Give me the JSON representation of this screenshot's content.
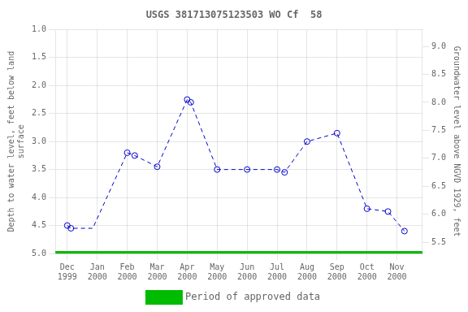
{
  "chart_data": {
    "type": "line",
    "title": "USGS 381713075123503 WO Cf  58",
    "ylabel": "Depth to water level, feet below land\nsurface",
    "y2label": "Groundwater level above NGVD 1929, feet",
    "xlim": [
      -0.4,
      11.85
    ],
    "xticks": [
      {
        "value": 0,
        "label": "Dec\n1999"
      },
      {
        "value": 1,
        "label": "Jan\n2000"
      },
      {
        "value": 2,
        "label": "Feb\n2000"
      },
      {
        "value": 3,
        "label": "Mar\n2000"
      },
      {
        "value": 4,
        "label": "Apr\n2000"
      },
      {
        "value": 5,
        "label": "May\n2000"
      },
      {
        "value": 6,
        "label": "Jun\n2000"
      },
      {
        "value": 7,
        "label": "Jul\n2000"
      },
      {
        "value": 8,
        "label": "Aug\n2000"
      },
      {
        "value": 9,
        "label": "Sep\n2000"
      },
      {
        "value": 10,
        "label": "Oct\n2000"
      },
      {
        "value": 11,
        "label": "Nov\n2000"
      }
    ],
    "ylim": [
      5.0,
      1.0
    ],
    "yticks": [
      {
        "value": 1.0,
        "label": "1.0"
      },
      1.5,
      {
        "value": 2.0,
        "label": "2.0"
      },
      2.5,
      {
        "value": 3.0,
        "label": "3.0"
      },
      3.5,
      {
        "value": 4.0,
        "label": "4.0"
      },
      4.5,
      {
        "value": 5.0,
        "label": "5.0"
      }
    ],
    "y2lim": [
      5.3,
      9.3
    ],
    "y2ticks": [
      5.5,
      {
        "value": 6.0,
        "label": "6.0"
      },
      6.5,
      {
        "value": 7.0,
        "label": "7.0"
      },
      7.5,
      {
        "value": 8.0,
        "label": "8.0"
      },
      8.5,
      {
        "value": 9.0,
        "label": "9.0"
      }
    ],
    "grid": true,
    "legend": "bottom",
    "series": [
      {
        "x": [
          0.0,
          0.12,
          0.85,
          2.0,
          2.25,
          3.0,
          4.0,
          4.12,
          5.0,
          6.0,
          7.0,
          7.25,
          8.0,
          9.0,
          10.0,
          10.7,
          11.25
        ],
        "values": [
          4.5,
          4.55,
          4.55,
          3.2,
          3.25,
          3.45,
          2.25,
          2.3,
          3.5,
          3.5,
          3.5,
          3.55,
          3.0,
          2.85,
          4.2,
          4.25,
          4.6
        ],
        "color": "#0000CC",
        "line_style": "dashed",
        "marker": "none"
      },
      {
        "x": [
          0.0,
          0.12,
          2.0,
          2.25,
          3.0,
          4.0,
          4.12,
          5.0,
          6.0,
          7.0,
          7.25,
          8.0,
          9.0,
          10.0,
          10.7,
          11.25
        ],
        "values": [
          4.5,
          4.55,
          3.2,
          3.25,
          3.45,
          2.25,
          2.3,
          3.5,
          3.5,
          3.5,
          3.55,
          3.0,
          2.85,
          4.2,
          4.25,
          4.6
        ],
        "color": "#0000CC",
        "line_style": "none",
        "marker": "circle"
      },
      {
        "name": "Period of approved data",
        "type": "hline",
        "values": [
          5.0
        ],
        "color": "#00BB00"
      }
    ]
  }
}
